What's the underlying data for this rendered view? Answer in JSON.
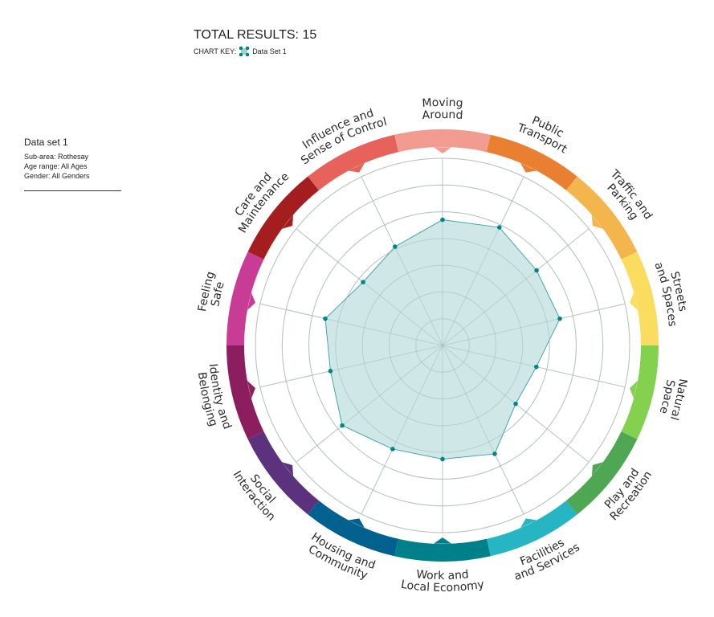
{
  "header": {
    "total_results": "TOTAL RESULTS: 15",
    "chart_key_label": "CHART KEY:",
    "key_series": "Data Set 1",
    "key_icon": "teal-square-with-corner-dots-icon"
  },
  "dataset_info": {
    "title": "Data set 1",
    "lines": [
      "Sub-area: Rothesay",
      "Age range: All Ages",
      "Gender: All Genders"
    ]
  },
  "chart_data": {
    "type": "radar",
    "scale": [
      0,
      7
    ],
    "rings": 7,
    "grid": true,
    "series": [
      {
        "name": "Data Set 1",
        "color": "#00868a",
        "fill": "#cde6e7"
      }
    ],
    "categories": [
      {
        "lines": [
          "Moving",
          "Around"
        ],
        "color": "#f29b90",
        "value": 4.7
      },
      {
        "lines": [
          "Public",
          "Transport"
        ],
        "color": "#e97f30",
        "value": 4.9
      },
      {
        "lines": [
          "Traffic and",
          "Parking"
        ],
        "color": "#f3b54c",
        "value": 4.5
      },
      {
        "lines": [
          "Streets",
          "and Spaces"
        ],
        "color": "#fadd5e",
        "value": 4.5
      },
      {
        "lines": [
          "Natural",
          "Space"
        ],
        "color": "#84d04f",
        "value": 3.6
      },
      {
        "lines": [
          "Play and",
          "Recreation"
        ],
        "color": "#4ea853",
        "value": 3.5
      },
      {
        "lines": [
          "Facilities",
          "and Services"
        ],
        "color": "#25b5c3",
        "value": 4.5
      },
      {
        "lines": [
          "Work and",
          "Local Economy"
        ],
        "color": "#00818a",
        "value": 4.25
      },
      {
        "lines": [
          "Housing and",
          "Community"
        ],
        "color": "#02618e",
        "value": 4.3
      },
      {
        "lines": [
          "Social",
          "Interaction"
        ],
        "color": "#5c327f",
        "value": 4.8
      },
      {
        "lines": [
          "Identity and",
          "Belonging"
        ],
        "color": "#8c1e60",
        "value": 4.3
      },
      {
        "lines": [
          "Feeling",
          "Safe"
        ],
        "color": "#c93c96",
        "value": 4.5
      },
      {
        "lines": [
          "Care and",
          "Maintenance"
        ],
        "color": "#a51e1f",
        "value": 3.8
      },
      {
        "lines": [
          "Influence and",
          "Sense of Control"
        ],
        "color": "#e6625a",
        "value": 4.1
      }
    ]
  }
}
